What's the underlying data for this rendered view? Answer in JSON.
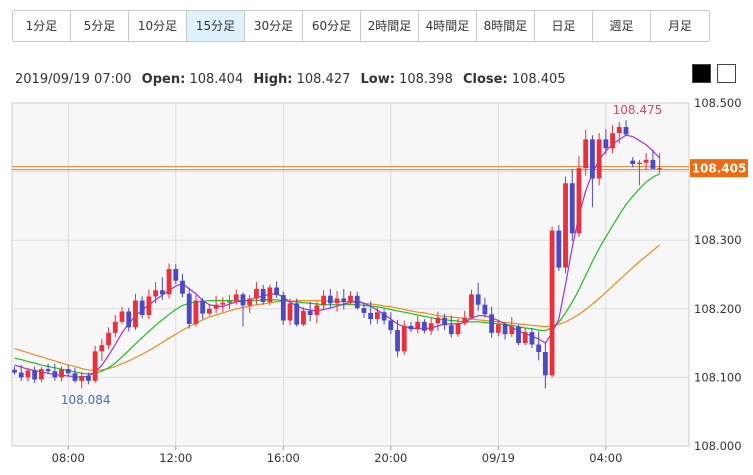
{
  "tabs": [
    {
      "label": "1分足",
      "active": false
    },
    {
      "label": "5分足",
      "active": false
    },
    {
      "label": "10分足",
      "active": false
    },
    {
      "label": "15分足",
      "active": true
    },
    {
      "label": "30分足",
      "active": false
    },
    {
      "label": "60分足",
      "active": false
    },
    {
      "label": "2時間足",
      "active": false
    },
    {
      "label": "4時間足",
      "active": false
    },
    {
      "label": "8時間足",
      "active": false
    },
    {
      "label": "日足",
      "active": false
    },
    {
      "label": "週足",
      "active": false
    },
    {
      "label": "月足",
      "active": false
    }
  ],
  "ohlc": {
    "datetime": "2019/09/19 07:00",
    "open_label": "Open:",
    "open": "108.404",
    "high_label": "High:",
    "high": "108.427",
    "low_label": "Low:",
    "low": "108.398",
    "close_label": "Close:",
    "close": "108.405"
  },
  "theme": {
    "dark": "#000000",
    "light": "#ffffff"
  },
  "chart_data": {
    "type": "candlestick",
    "ylim": [
      108.0,
      108.5
    ],
    "y_ticks": [
      "108.500",
      "108.400",
      "108.300",
      "108.200",
      "108.100",
      "108.000"
    ],
    "x_ticks": [
      "08:00",
      "12:00",
      "16:00",
      "20:00",
      "09/19",
      "04:00"
    ],
    "x_tick_bar_index": [
      8,
      24,
      40,
      56,
      72,
      88
    ],
    "current_price": "108.405",
    "current_value": 108.405,
    "max_label": "108.475",
    "max_bar_index": 93,
    "min_label": "108.084",
    "min_bar_index": 10,
    "colors": {
      "up": "#e8313a",
      "down": "#4a49c6",
      "ma_fast": "#a62ee0",
      "ma_mid": "#1fbf1f",
      "ma_slow": "#f28a1e",
      "price_line": "#e8812a",
      "price_tag": "#f06a10",
      "max_text": "#e8455a",
      "min_text": "#4a6bbd"
    },
    "candles": [
      [
        108.111,
        108.116,
        108.104,
        108.107
      ],
      [
        108.107,
        108.118,
        108.095,
        108.1
      ],
      [
        108.1,
        108.114,
        108.094,
        108.11
      ],
      [
        108.11,
        108.116,
        108.092,
        108.097
      ],
      [
        108.097,
        108.115,
        108.093,
        108.112
      ],
      [
        108.112,
        108.12,
        108.105,
        108.109
      ],
      [
        108.109,
        108.12,
        108.095,
        108.1
      ],
      [
        108.1,
        108.116,
        108.094,
        108.112
      ],
      [
        108.112,
        108.118,
        108.101,
        108.106
      ],
      [
        108.106,
        108.114,
        108.092,
        108.095
      ],
      [
        108.095,
        108.108,
        108.084,
        108.102
      ],
      [
        108.102,
        108.107,
        108.09,
        108.095
      ],
      [
        108.095,
        108.146,
        108.092,
        108.138
      ],
      [
        108.138,
        108.156,
        108.124,
        108.147
      ],
      [
        108.147,
        108.173,
        108.141,
        108.165
      ],
      [
        108.165,
        108.191,
        108.159,
        108.181
      ],
      [
        108.181,
        108.203,
        108.178,
        108.196
      ],
      [
        108.196,
        108.201,
        108.167,
        108.173
      ],
      [
        108.173,
        108.222,
        108.169,
        108.212
      ],
      [
        108.212,
        108.218,
        108.186,
        108.191
      ],
      [
        108.191,
        108.228,
        108.185,
        108.218
      ],
      [
        108.218,
        108.239,
        108.208,
        108.227
      ],
      [
        108.227,
        108.246,
        108.213,
        108.221
      ],
      [
        108.221,
        108.266,
        108.215,
        108.258
      ],
      [
        108.258,
        108.265,
        108.236,
        108.241
      ],
      [
        108.241,
        108.251,
        108.217,
        108.222
      ],
      [
        108.222,
        108.231,
        108.171,
        108.178
      ],
      [
        108.178,
        108.22,
        108.174,
        108.212
      ],
      [
        108.212,
        108.216,
        108.185,
        108.193
      ],
      [
        108.193,
        108.207,
        108.19,
        108.2
      ],
      [
        108.2,
        108.219,
        108.194,
        108.206
      ],
      [
        108.206,
        108.217,
        108.195,
        108.209
      ],
      [
        108.209,
        108.22,
        108.199,
        108.211
      ],
      [
        108.211,
        108.228,
        108.206,
        108.221
      ],
      [
        108.221,
        108.224,
        108.174,
        108.205
      ],
      [
        108.205,
        108.22,
        108.194,
        108.215
      ],
      [
        108.215,
        108.239,
        108.206,
        108.229
      ],
      [
        108.229,
        108.235,
        108.206,
        108.21
      ],
      [
        108.21,
        108.235,
        108.205,
        108.231
      ],
      [
        108.231,
        108.24,
        108.216,
        108.22
      ],
      [
        108.22,
        108.225,
        108.177,
        108.183
      ],
      [
        108.183,
        108.215,
        108.176,
        108.208
      ],
      [
        108.208,
        108.215,
        108.174,
        108.177
      ],
      [
        108.177,
        108.202,
        108.175,
        108.197
      ],
      [
        108.197,
        108.21,
        108.182,
        108.191
      ],
      [
        108.191,
        108.21,
        108.179,
        108.205
      ],
      [
        108.205,
        108.227,
        108.199,
        108.219
      ],
      [
        108.219,
        108.229,
        108.202,
        108.208
      ],
      [
        108.208,
        108.226,
        108.196,
        108.215
      ],
      [
        108.215,
        108.229,
        108.199,
        108.21
      ],
      [
        108.21,
        108.226,
        108.206,
        108.219
      ],
      [
        108.219,
        108.225,
        108.199,
        108.201
      ],
      [
        108.201,
        108.209,
        108.187,
        108.194
      ],
      [
        108.194,
        108.211,
        108.177,
        108.185
      ],
      [
        108.185,
        108.202,
        108.178,
        108.195
      ],
      [
        108.195,
        108.199,
        108.177,
        108.183
      ],
      [
        108.183,
        108.195,
        108.163,
        108.169
      ],
      [
        108.169,
        108.184,
        108.13,
        108.138
      ],
      [
        108.138,
        108.183,
        108.133,
        108.175
      ],
      [
        108.175,
        108.181,
        108.166,
        108.17
      ],
      [
        108.17,
        108.189,
        108.164,
        108.181
      ],
      [
        108.181,
        108.185,
        108.164,
        108.168
      ],
      [
        108.168,
        108.186,
        108.162,
        108.179
      ],
      [
        108.179,
        108.196,
        108.168,
        108.187
      ],
      [
        108.187,
        108.193,
        108.169,
        108.176
      ],
      [
        108.176,
        108.19,
        108.158,
        108.163
      ],
      [
        108.163,
        108.186,
        108.159,
        108.179
      ],
      [
        108.179,
        108.197,
        108.176,
        108.187
      ],
      [
        108.187,
        108.228,
        108.186,
        108.221
      ],
      [
        108.221,
        108.238,
        108.197,
        108.206
      ],
      [
        108.206,
        108.216,
        108.187,
        108.192
      ],
      [
        108.192,
        108.203,
        108.158,
        108.165
      ],
      [
        108.165,
        108.183,
        108.16,
        108.177
      ],
      [
        108.177,
        108.18,
        108.155,
        108.163
      ],
      [
        108.163,
        108.188,
        108.159,
        108.174
      ],
      [
        108.174,
        108.177,
        108.147,
        108.15
      ],
      [
        108.15,
        108.172,
        108.147,
        108.166
      ],
      [
        108.166,
        108.172,
        108.143,
        108.148
      ],
      [
        108.148,
        108.167,
        108.125,
        108.137
      ],
      [
        108.137,
        108.151,
        108.084,
        108.103
      ],
      [
        108.103,
        108.32,
        108.1,
        108.314
      ],
      [
        108.314,
        108.322,
        108.255,
        108.26
      ],
      [
        108.26,
        108.393,
        108.252,
        108.383
      ],
      [
        108.383,
        108.404,
        108.299,
        108.31
      ],
      [
        108.31,
        108.423,
        108.305,
        108.405
      ],
      [
        108.405,
        108.461,
        108.394,
        108.447
      ],
      [
        108.447,
        108.453,
        108.348,
        108.39
      ],
      [
        108.39,
        108.456,
        108.38,
        108.447
      ],
      [
        108.447,
        108.462,
        108.425,
        108.434
      ],
      [
        108.434,
        108.468,
        108.427,
        108.456
      ],
      [
        108.456,
        108.472,
        108.441,
        108.465
      ],
      [
        108.465,
        108.475,
        108.452,
        108.454
      ],
      [
        108.416,
        108.421,
        108.406,
        108.411
      ],
      [
        108.411,
        108.417,
        108.38,
        108.413
      ],
      [
        108.413,
        108.427,
        108.402,
        108.417
      ],
      [
        108.417,
        108.432,
        108.405,
        108.404
      ],
      [
        108.404,
        108.427,
        108.398,
        108.405
      ]
    ],
    "ma_fast": [
      108.118,
      108.115,
      108.112,
      108.11,
      108.108,
      108.106,
      108.104,
      108.103,
      108.102,
      108.101,
      108.1,
      108.102,
      108.108,
      108.118,
      108.132,
      108.148,
      108.165,
      108.178,
      108.19,
      108.198,
      108.206,
      108.213,
      108.22,
      108.227,
      108.233,
      108.237,
      108.229,
      108.222,
      108.212,
      108.206,
      108.204,
      108.203,
      108.207,
      108.21,
      108.211,
      108.213,
      108.216,
      108.219,
      108.221,
      108.222,
      108.217,
      108.21,
      108.204,
      108.2,
      108.198,
      108.197,
      108.199,
      108.201,
      108.204,
      108.207,
      108.209,
      108.212,
      108.208,
      108.204,
      108.198,
      108.192,
      108.185,
      108.178,
      108.174,
      108.172,
      108.171,
      108.171,
      108.172,
      108.175,
      108.178,
      108.178,
      108.178,
      108.18,
      108.186,
      108.19,
      108.19,
      108.187,
      108.183,
      108.178,
      108.173,
      108.168,
      108.164,
      108.16,
      108.156,
      108.15,
      108.165,
      108.185,
      108.235,
      108.29,
      108.336,
      108.372,
      108.398,
      108.417,
      108.43,
      108.44,
      108.447,
      108.453,
      108.451,
      108.445,
      108.439,
      108.43,
      108.42
    ],
    "ma_mid": [
      108.128,
      108.126,
      108.123,
      108.121,
      108.118,
      108.116,
      108.114,
      108.112,
      108.11,
      108.108,
      108.106,
      108.105,
      108.106,
      108.109,
      108.114,
      108.121,
      108.13,
      108.139,
      108.149,
      108.158,
      108.167,
      108.176,
      108.184,
      108.192,
      108.199,
      108.205,
      108.208,
      108.21,
      108.211,
      108.212,
      108.212,
      108.212,
      108.212,
      108.212,
      108.212,
      108.212,
      108.212,
      108.213,
      108.213,
      108.213,
      108.212,
      108.211,
      108.21,
      108.209,
      108.208,
      108.207,
      108.206,
      108.206,
      108.206,
      108.206,
      108.206,
      108.206,
      108.205,
      108.204,
      108.203,
      108.201,
      108.199,
      108.197,
      108.195,
      108.193,
      108.191,
      108.189,
      108.187,
      108.185,
      108.184,
      108.183,
      108.182,
      108.181,
      108.181,
      108.181,
      108.18,
      108.179,
      108.178,
      108.177,
      108.176,
      108.174,
      108.172,
      108.171,
      108.169,
      108.168,
      108.173,
      108.18,
      108.194,
      108.21,
      108.228,
      108.249,
      108.269,
      108.288,
      108.305,
      108.321,
      108.337,
      108.352,
      108.364,
      108.375,
      108.385,
      108.392,
      108.397
    ],
    "ma_slow": [
      108.142,
      108.139,
      108.136,
      108.133,
      108.13,
      108.127,
      108.124,
      108.121,
      108.118,
      108.116,
      108.113,
      108.111,
      108.11,
      108.111,
      108.113,
      108.116,
      108.12,
      108.124,
      108.129,
      108.134,
      108.139,
      108.145,
      108.151,
      108.157,
      108.163,
      108.169,
      108.174,
      108.179,
      108.184,
      108.188,
      108.191,
      108.194,
      108.197,
      108.2,
      108.202,
      108.204,
      108.206,
      108.207,
      108.209,
      108.21,
      108.211,
      108.211,
      108.212,
      108.212,
      108.212,
      108.212,
      108.212,
      108.211,
      108.211,
      108.21,
      108.21,
      108.209,
      108.208,
      108.207,
      108.206,
      108.204,
      108.203,
      108.201,
      108.199,
      108.197,
      108.195,
      108.194,
      108.192,
      108.19,
      108.189,
      108.188,
      108.187,
      108.186,
      108.185,
      108.184,
      108.183,
      108.182,
      108.181,
      108.18,
      108.179,
      108.178,
      108.177,
      108.176,
      108.175,
      108.174,
      108.175,
      108.177,
      108.181,
      108.186,
      108.192,
      108.199,
      108.207,
      108.215,
      108.224,
      108.233,
      108.242,
      108.251,
      108.26,
      108.269,
      108.277,
      108.285,
      108.293
    ]
  }
}
